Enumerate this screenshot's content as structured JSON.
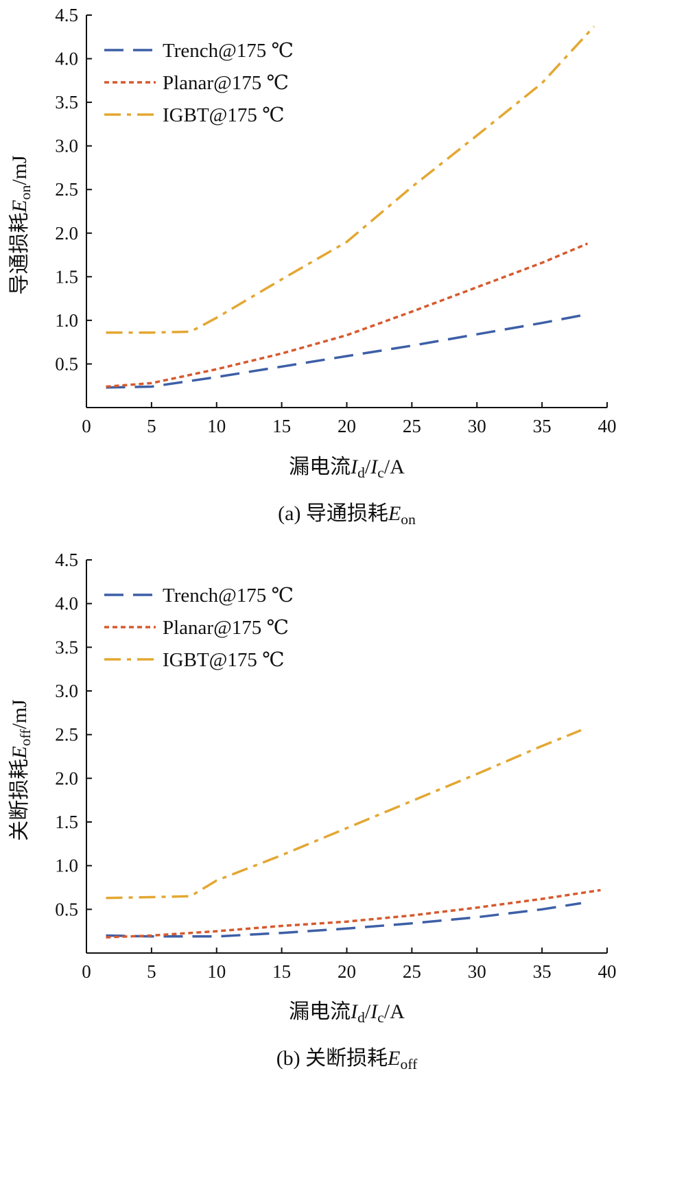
{
  "chart_data": [
    {
      "type": "line",
      "id": "a",
      "caption": {
        "prefix": "(a) 导通损耗",
        "var": "E",
        "sub": "on"
      },
      "xlabel": {
        "prefix": "漏电流",
        "v1": "I",
        "s1": "d",
        "mid": "/",
        "v2": "I",
        "s2": "c",
        "suffix": "/A"
      },
      "ylabel": {
        "prefix": "导通损耗",
        "var": "E",
        "sub": "on",
        "suffix": "/mJ"
      },
      "xlim": [
        0,
        40
      ],
      "ylim": [
        0,
        4.5
      ],
      "xticks": [
        0,
        5,
        10,
        15,
        20,
        25,
        30,
        35,
        40
      ],
      "yticks": [
        0.5,
        1.0,
        1.5,
        2.0,
        2.5,
        3.0,
        3.5,
        4.0,
        4.5
      ],
      "ytick_labels": [
        "0.5",
        "1.0",
        "1.5",
        "2.0",
        "2.5",
        "3.0",
        "3.5",
        "4.0",
        "4.5"
      ],
      "legend_position": "top-left",
      "grid": false,
      "series": [
        {
          "name": "Trench@175 ℃",
          "color": "#3d5fa6",
          "dash": "28 14",
          "x": [
            1.5,
            5,
            10,
            15,
            20,
            25,
            30,
            35,
            38.5
          ],
          "y": [
            0.23,
            0.24,
            0.35,
            0.47,
            0.59,
            0.71,
            0.84,
            0.97,
            1.07
          ]
        },
        {
          "name": "Planar@175 ℃",
          "color": "#d55a2e",
          "dash": "7 5",
          "x": [
            1.5,
            5,
            10,
            15,
            20,
            25,
            30,
            35,
            38.5
          ],
          "y": [
            0.24,
            0.28,
            0.44,
            0.62,
            0.83,
            1.1,
            1.38,
            1.66,
            1.88
          ]
        },
        {
          "name": "IGBT@175 ℃",
          "color": "#e3a731",
          "dash": "24 9 6 9",
          "x": [
            1.5,
            5,
            8,
            10,
            15,
            20,
            25,
            30,
            35,
            39
          ],
          "y": [
            0.86,
            0.86,
            0.87,
            1.03,
            1.47,
            1.9,
            2.53,
            3.12,
            3.72,
            4.37
          ]
        }
      ]
    },
    {
      "type": "line",
      "id": "b",
      "caption": {
        "prefix": "(b) 关断损耗",
        "var": "E",
        "sub": "off"
      },
      "xlabel": {
        "prefix": "漏电流",
        "v1": "I",
        "s1": "d",
        "mid": "/",
        "v2": "I",
        "s2": "c",
        "suffix": "/A"
      },
      "ylabel": {
        "prefix": "关断损耗",
        "var": "E",
        "sub": "off",
        "suffix": "/mJ"
      },
      "xlim": [
        0,
        40
      ],
      "ylim": [
        0,
        4.5
      ],
      "xticks": [
        0,
        5,
        10,
        15,
        20,
        25,
        30,
        35,
        40
      ],
      "yticks": [
        0.5,
        1.0,
        1.5,
        2.0,
        2.5,
        3.0,
        3.5,
        4.0,
        4.5
      ],
      "ytick_labels": [
        "0.5",
        "1.0",
        "1.5",
        "2.0",
        "2.5",
        "3.0",
        "3.5",
        "4.0",
        "4.5"
      ],
      "legend_position": "top-left",
      "grid": false,
      "series": [
        {
          "name": "Trench@175 ℃",
          "color": "#3d5fa6",
          "dash": "28 14",
          "x": [
            1.5,
            5,
            10,
            15,
            20,
            25,
            30,
            35,
            38
          ],
          "y": [
            0.2,
            0.19,
            0.19,
            0.23,
            0.28,
            0.34,
            0.41,
            0.5,
            0.57
          ]
        },
        {
          "name": "Planar@175 ℃",
          "color": "#d55a2e",
          "dash": "7 5",
          "x": [
            1.5,
            5,
            10,
            15,
            20,
            25,
            30,
            35,
            39.5
          ],
          "y": [
            0.18,
            0.2,
            0.25,
            0.31,
            0.36,
            0.43,
            0.52,
            0.62,
            0.72
          ]
        },
        {
          "name": "IGBT@175 ℃",
          "color": "#e3a731",
          "dash": "24 9 6 9",
          "x": [
            1.5,
            5,
            8,
            10,
            15,
            20,
            25,
            30,
            35,
            38
          ],
          "y": [
            0.63,
            0.64,
            0.65,
            0.83,
            1.12,
            1.43,
            1.74,
            2.05,
            2.37,
            2.55
          ]
        }
      ]
    }
  ]
}
